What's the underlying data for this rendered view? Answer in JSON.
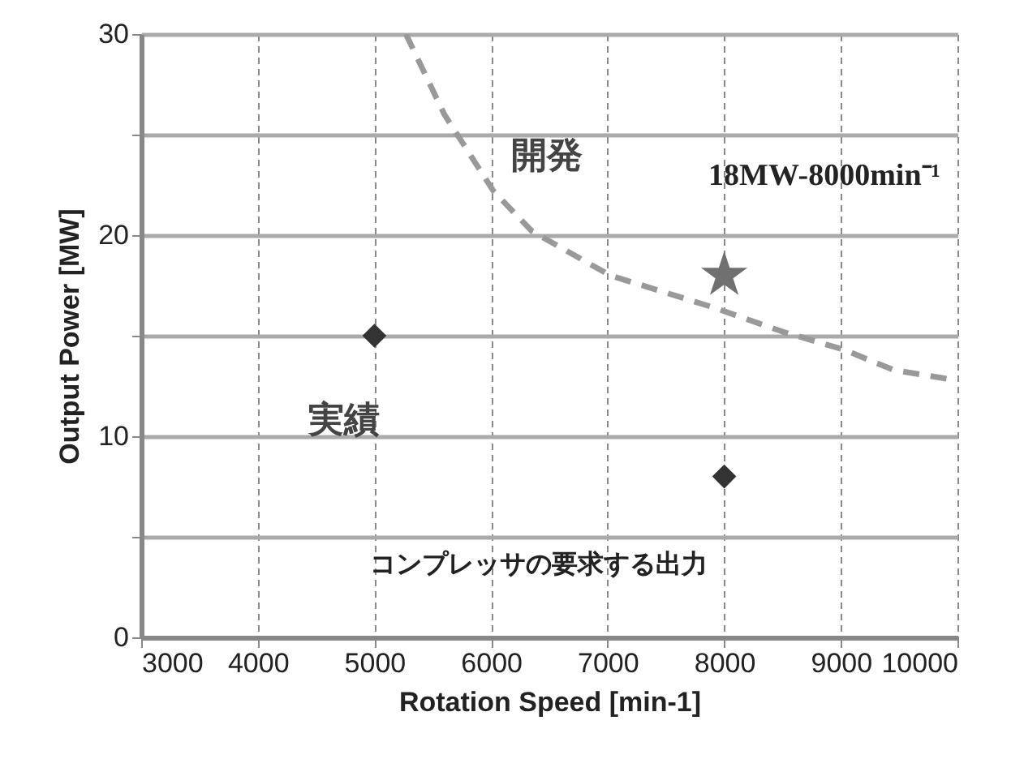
{
  "chart_data": {
    "type": "scatter",
    "xlabel": "Rotation Speed [min-1]",
    "ylabel": "Output Power [MW]",
    "xlim": [
      3000,
      10000
    ],
    "xticks": [
      3000,
      4000,
      5000,
      6000,
      7000,
      8000,
      9000,
      10000
    ],
    "ylim": [
      0,
      30
    ],
    "yticks": [
      0,
      {
        "value": 5,
        "label": null
      },
      10,
      {
        "value": 15,
        "label": null
      },
      20,
      {
        "value": 25,
        "label": null
      },
      30
    ],
    "grid": true,
    "series": [
      {
        "type": "line",
        "color": "#999999",
        "line_style": "dashed",
        "marker": "none",
        "x": [
          5270,
          5600,
          6020,
          6350,
          7020,
          7910,
          8500,
          9030,
          9450,
          9970
        ],
        "values": [
          30,
          26,
          22.2,
          20.2,
          18.0,
          16.4,
          15.2,
          14.3,
          13.3,
          12.8
        ]
      },
      {
        "color": "#333333",
        "marker": "diamond",
        "x": [
          5000,
          8000
        ],
        "values": [
          15,
          8
        ]
      },
      {
        "color": "#707070",
        "marker": "star",
        "x": [
          8000
        ],
        "values": [
          18
        ]
      }
    ],
    "annotations": [
      "開発",
      "実績",
      "18MW-8000min⁻¹",
      "コンプレッサの要求する出力"
    ]
  }
}
